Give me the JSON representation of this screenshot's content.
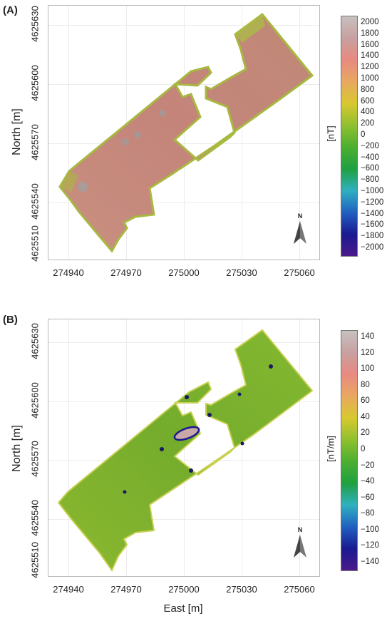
{
  "panels": [
    {
      "label": "(A)",
      "yaxis_label": "North [m]",
      "yticks": [
        "4625630",
        "4625600",
        "4625570",
        "4625540",
        "4625510"
      ],
      "xticks": [
        "274940",
        "274970",
        "275000",
        "275030",
        "275060"
      ],
      "colorbar_unit": "[nT]",
      "colorbar_ticks": [
        "2000",
        "1800",
        "1600",
        "1400",
        "1200",
        "1000",
        "800",
        "600",
        "400",
        "200",
        "0",
        "−200",
        "−400",
        "−600",
        "−800",
        "−1000",
        "−1200",
        "−1400",
        "−1600",
        "−1800",
        "−2000"
      ],
      "colorbar_range": [
        -2000,
        2000
      ],
      "north_symbol": "N",
      "map_color": "#c4847a"
    },
    {
      "label": "(B)",
      "yaxis_label": "North [m]",
      "xaxis_label": "East [m]",
      "yticks": [
        "4625630",
        "4625600",
        "4625570",
        "4625540",
        "4625510"
      ],
      "xticks": [
        "274940",
        "274970",
        "275000",
        "275030",
        "275060"
      ],
      "colorbar_unit": "[nT/m]",
      "colorbar_ticks": [
        "140",
        "120",
        "100",
        "80",
        "60",
        "40",
        "20",
        "0",
        "−20",
        "−40",
        "−60",
        "−80",
        "−100",
        "−120",
        "−140"
      ],
      "colorbar_range": [
        -140,
        140
      ],
      "north_symbol": "N",
      "map_color": "#7cb230"
    }
  ],
  "colorbar_colors": [
    "#4a1a8a",
    "#1a1a90",
    "#2060c0",
    "#30b0c0",
    "#20a040",
    "#4caf30",
    "#90c030",
    "#d8c830",
    "#e8a860",
    "#e88a80",
    "#c8a0a0",
    "#c8c0c0"
  ],
  "icons": {
    "north_arrow": "north-arrow-icon"
  }
}
